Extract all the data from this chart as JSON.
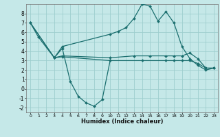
{
  "xlabel": "Humidex (Indice chaleur)",
  "background_color": "#c5e8e8",
  "grid_color": "#9ecece",
  "line_color": "#1a6e6e",
  "xlim": [
    -0.5,
    23.5
  ],
  "ylim": [
    -2.5,
    9.0
  ],
  "yticks": [
    -2,
    -1,
    0,
    1,
    2,
    3,
    4,
    5,
    6,
    7,
    8
  ],
  "xticks": [
    0,
    1,
    2,
    3,
    4,
    5,
    6,
    7,
    8,
    9,
    10,
    11,
    12,
    13,
    14,
    15,
    16,
    17,
    18,
    19,
    20,
    21,
    22,
    23
  ],
  "lines": [
    {
      "x": [
        0,
        1,
        3,
        4,
        5,
        6,
        7,
        8,
        9,
        10
      ],
      "y": [
        7.0,
        5.5,
        3.3,
        4.3,
        0.8,
        -0.8,
        -1.5,
        -1.85,
        -1.15,
        3.0
      ]
    },
    {
      "x": [
        0,
        3,
        4,
        10,
        11,
        12,
        13,
        14,
        15,
        16,
        17,
        18,
        19,
        20,
        21,
        22,
        23
      ],
      "y": [
        7.0,
        3.3,
        4.5,
        5.8,
        6.1,
        6.5,
        7.5,
        9.0,
        8.8,
        7.2,
        8.2,
        7.0,
        4.5,
        3.2,
        2.5,
        2.0,
        2.2
      ]
    },
    {
      "x": [
        0,
        3,
        4,
        10,
        13,
        15,
        17,
        18,
        19,
        20,
        21,
        22,
        23
      ],
      "y": [
        7.0,
        3.3,
        3.5,
        3.3,
        3.5,
        3.5,
        3.5,
        3.5,
        3.5,
        3.8,
        3.2,
        2.2,
        2.2
      ]
    },
    {
      "x": [
        3,
        4,
        10,
        14,
        17,
        18,
        19,
        20,
        21,
        22,
        23
      ],
      "y": [
        3.3,
        3.4,
        3.0,
        3.0,
        3.0,
        3.0,
        3.0,
        3.0,
        2.7,
        2.2,
        2.2
      ]
    }
  ]
}
